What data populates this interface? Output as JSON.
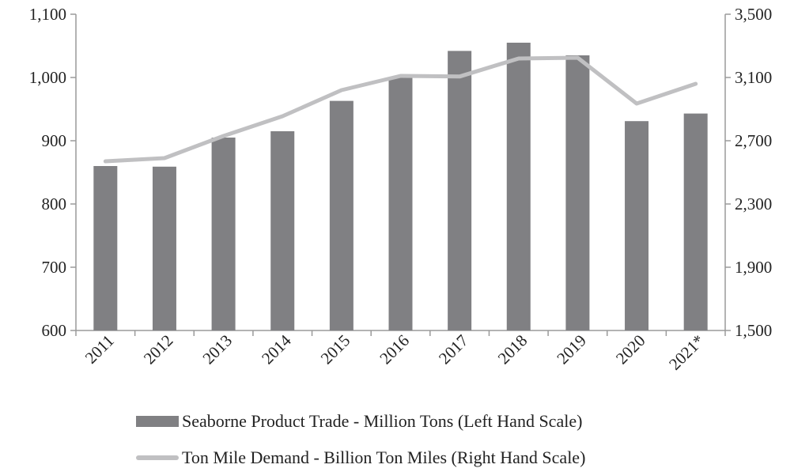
{
  "chart_data": {
    "type": "bar",
    "categories": [
      "2011",
      "2012",
      "2013",
      "2014",
      "2015",
      "2016",
      "2017",
      "2018",
      "2019",
      "2020",
      "2021*"
    ],
    "series": [
      {
        "name": "Seaborne Product Trade - Million Tons (Left Hand Scale)",
        "type": "bar",
        "axis": "left",
        "color": "#808083",
        "values": [
          860,
          859,
          905,
          915,
          963,
          1000,
          1042,
          1055,
          1035,
          931,
          943
        ]
      },
      {
        "name": "Ton Mile Demand - Billion Ton Miles (Right Hand Scale)",
        "type": "line",
        "axis": "right",
        "color": "#c0c0c2",
        "values": [
          2570,
          2590,
          2730,
          2855,
          3020,
          3110,
          3106,
          3220,
          3225,
          2935,
          3060
        ]
      }
    ],
    "y_left": {
      "range": [
        600,
        1100
      ],
      "ticks": [
        600,
        700,
        800,
        900,
        1000,
        1100
      ],
      "tick_labels": [
        "600",
        "700",
        "800",
        "900",
        "1,000",
        "1,100"
      ]
    },
    "y_right": {
      "range": [
        1500,
        3500
      ],
      "ticks": [
        1500,
        1900,
        2300,
        2700,
        3100,
        3500
      ],
      "tick_labels": [
        "1,500",
        "1,900",
        "2,300",
        "2,700",
        "3,100",
        "3,500"
      ]
    },
    "grid": false,
    "legend_placement": "bottom"
  }
}
